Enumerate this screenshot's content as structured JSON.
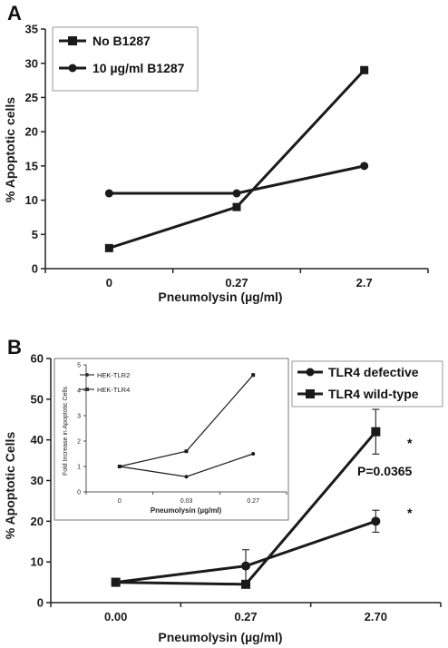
{
  "chart_data": [
    {
      "panel": "A",
      "type": "line",
      "categories": [
        "0",
        "0.27",
        "2.7"
      ],
      "xlabel": "Pneumolysin (µg/ml)",
      "ylabel": "% Apoptotic cells",
      "ylim": [
        0,
        35
      ],
      "yticks": [
        "0",
        "5",
        "10",
        "15",
        "20",
        "25",
        "30",
        "35"
      ],
      "grid": false,
      "legend_position": "top-left",
      "series": [
        {
          "name": "No B1287",
          "marker": "square",
          "values": [
            3,
            9,
            29
          ]
        },
        {
          "name": "10 µg/ml B1287",
          "marker": "circle",
          "values": [
            11,
            11,
            15
          ]
        }
      ]
    },
    {
      "panel": "B",
      "type": "line",
      "categories": [
        "0.00",
        "0.27",
        "2.70"
      ],
      "xlabel": "Pneumolysin (µg/ml)",
      "ylabel": "% Apoptotic Cells",
      "ylim": [
        0,
        60
      ],
      "yticks": [
        "0",
        "10",
        "20",
        "30",
        "40",
        "50",
        "60"
      ],
      "grid": false,
      "legend_position": "top-right",
      "series": [
        {
          "name": "TLR4 defective",
          "marker": "circle",
          "values": [
            5,
            9,
            20
          ],
          "errors": [
            0,
            4,
            2.7
          ]
        },
        {
          "name": "TLR4 wild-type",
          "marker": "square",
          "values": [
            5,
            4.5,
            42
          ],
          "errors": [
            0,
            0,
            5.5
          ]
        }
      ],
      "annotations": [
        "*",
        "*",
        "P=0.0365"
      ]
    },
    {
      "panel": "B-inset",
      "type": "line",
      "categories": [
        "0",
        "0.03",
        "0.27"
      ],
      "xlabel": "Pneumolysin (µg/ml)",
      "ylabel": "Fold Increase in Apoptotic Cells",
      "ylim": [
        0,
        5
      ],
      "yticks": [
        "0",
        "1",
        "2",
        "3",
        "4",
        "5"
      ],
      "legend_position": "top-left",
      "series": [
        {
          "name": "HEK-TLR2",
          "marker": "circle",
          "values": [
            1,
            0.6,
            1.5
          ]
        },
        {
          "name": "HEK-TLR4",
          "marker": "square",
          "values": [
            1,
            1.6,
            4.6
          ]
        }
      ]
    }
  ]
}
